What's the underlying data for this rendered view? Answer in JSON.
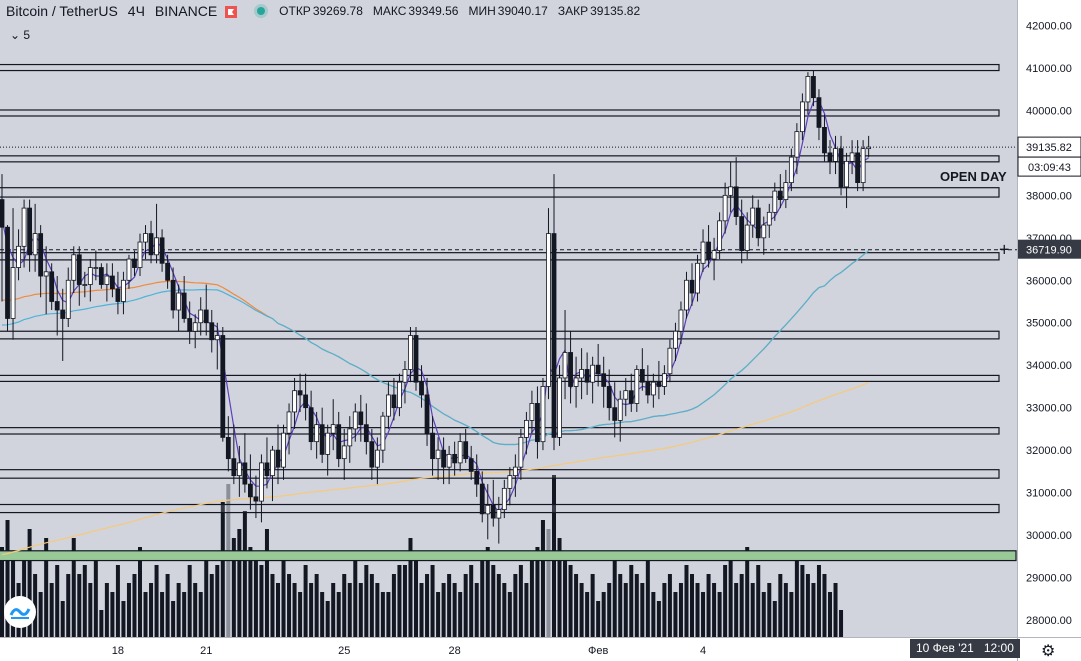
{
  "header": {
    "symbol": "Bitcoin / TetherUS",
    "interval": "4Ч",
    "exchange": "BINANCE",
    "ohlc": [
      {
        "label": "ОТКР",
        "value": "39269.78"
      },
      {
        "label": "МАКС",
        "value": "39349.56"
      },
      {
        "label": "МИН",
        "value": "39040.17"
      },
      {
        "label": "ЗАКР",
        "value": "39135.82"
      }
    ],
    "indicator_toggle": "5"
  },
  "colors": {
    "background": "#d1d4dc",
    "axis_bg": "#ffffff",
    "bull_fill": "#ffffff",
    "bear_fill": "#131722",
    "ma_purple": "#5b3fbf",
    "ma_cyan": "#4fb3d9",
    "ma_orange": "#f08a3c",
    "ma_yellow": "#f7c97a",
    "volume": "#131722",
    "volume_gray": "#8a8f99",
    "green_zone": "#98c996"
  },
  "chart_data": {
    "type": "candlestick",
    "y_axis": {
      "range": [
        27600,
        42600
      ],
      "ticks": [
        42000,
        41000,
        40000,
        39000,
        38000,
        37000,
        36000,
        35000,
        34000,
        33000,
        32000,
        31000,
        30000,
        29000,
        28000
      ],
      "tick_labels": [
        "42000.00",
        "41000.00",
        "40000.00",
        "39000.00",
        "38000.00",
        "37000.00",
        "36000.00",
        "35000.00",
        "34000.00",
        "33000.00",
        "32000.00",
        "31000.00",
        "30000.00",
        "29000.00",
        "28000.00"
      ]
    },
    "x_axis": {
      "tick_labels": [
        {
          "label": "18",
          "bar": 21
        },
        {
          "label": "21",
          "bar": 37
        },
        {
          "label": "25",
          "bar": 62
        },
        {
          "label": "28",
          "bar": 82
        },
        {
          "label": "Фев",
          "bar": 108
        },
        {
          "label": "4",
          "bar": 127
        }
      ],
      "crosshair_label": "10 Фев '21",
      "crosshair_time": "12:00"
    },
    "price_labels": [
      {
        "value": 39135.82,
        "text": "39135.82",
        "style": "current"
      },
      {
        "text": "03:09:43",
        "style": "countdown"
      },
      {
        "value": 36719.9,
        "text": "36719.90",
        "style": "crosshair"
      }
    ],
    "annotations": [
      {
        "text": "OPEN DAY",
        "value": 38450
      }
    ],
    "levels": [
      {
        "low": 40980,
        "high": 41080
      },
      {
        "low": 39920,
        "high": 40010
      },
      {
        "low": 38800,
        "high": 38930
      },
      {
        "low": 37960,
        "high": 38180
      },
      {
        "low": 36480,
        "high": 36650
      },
      {
        "low": 34620,
        "high": 34800
      },
      {
        "low": 33620,
        "high": 33760
      },
      {
        "low": 32380,
        "high": 32530
      },
      {
        "low": 31340,
        "high": 31540
      },
      {
        "low": 30530,
        "high": 30720
      },
      {
        "low": 29400,
        "high": 29630,
        "style": "green"
      }
    ],
    "reference_lines": [
      {
        "value": 39135.82,
        "style": "dotted"
      },
      {
        "value": 36719.9,
        "style": "dashed"
      }
    ],
    "candles": [
      [
        37900,
        38500,
        35500,
        37250
      ],
      [
        37250,
        37300,
        34800,
        35100
      ],
      [
        35100,
        37700,
        34600,
        36300
      ],
      [
        36300,
        37200,
        36000,
        36800
      ],
      [
        36800,
        37900,
        36300,
        37700
      ],
      [
        37700,
        37900,
        36200,
        36600
      ],
      [
        36600,
        37800,
        36200,
        37100
      ],
      [
        37100,
        37300,
        35600,
        36100
      ],
      [
        36100,
        36800,
        35200,
        36200
      ],
      [
        36200,
        36400,
        35300,
        35500
      ],
      [
        35500,
        36100,
        34700,
        35300
      ],
      [
        35300,
        35800,
        34100,
        35100
      ],
      [
        35100,
        36300,
        34900,
        36000
      ],
      [
        36000,
        36800,
        35700,
        36600
      ],
      [
        36600,
        36800,
        35400,
        35900
      ],
      [
        35900,
        36200,
        35600,
        35900
      ],
      [
        35900,
        36500,
        35500,
        36300
      ],
      [
        36300,
        36700,
        36000,
        36300
      ],
      [
        36300,
        36400,
        35800,
        35900
      ],
      [
        35900,
        36400,
        35500,
        36100
      ],
      [
        36100,
        36400,
        35600,
        35800
      ],
      [
        35800,
        36200,
        35200,
        35500
      ],
      [
        35500,
        36200,
        35200,
        36000
      ],
      [
        36000,
        36600,
        35800,
        36500
      ],
      [
        36500,
        36700,
        36100,
        36300
      ],
      [
        36300,
        37100,
        36100,
        36900
      ],
      [
        36900,
        37300,
        36500,
        37100
      ],
      [
        37100,
        37400,
        36400,
        36600
      ],
      [
        36600,
        37800,
        36400,
        37000
      ],
      [
        37000,
        37200,
        36200,
        36400
      ],
      [
        36400,
        36600,
        35800,
        36000
      ],
      [
        36000,
        36300,
        35100,
        35300
      ],
      [
        35300,
        35900,
        34800,
        35700
      ],
      [
        35700,
        36100,
        35000,
        35100
      ],
      [
        35100,
        35500,
        34500,
        34800
      ],
      [
        34800,
        35200,
        34400,
        35000
      ],
      [
        35000,
        35600,
        34700,
        35300
      ],
      [
        35300,
        35900,
        34700,
        35000
      ],
      [
        35000,
        35300,
        34300,
        34600
      ],
      [
        34600,
        35000,
        33900,
        34700
      ],
      [
        34700,
        34900,
        32200,
        32300
      ],
      [
        32300,
        32800,
        31500,
        31800
      ],
      [
        31800,
        32600,
        31200,
        31400
      ],
      [
        31400,
        32100,
        30900,
        31700
      ],
      [
        31700,
        32400,
        31000,
        31200
      ],
      [
        31200,
        31900,
        30600,
        30900
      ],
      [
        30900,
        31400,
        30400,
        30800
      ],
      [
        30800,
        31900,
        30300,
        31700
      ],
      [
        31700,
        32300,
        31100,
        31400
      ],
      [
        31400,
        32100,
        30800,
        32000
      ],
      [
        32000,
        32600,
        31200,
        31600
      ],
      [
        31600,
        32600,
        31300,
        32400
      ],
      [
        32400,
        33100,
        31900,
        32900
      ],
      [
        32900,
        33700,
        32500,
        33400
      ],
      [
        33400,
        33800,
        32900,
        33300
      ],
      [
        33300,
        33800,
        32700,
        33000
      ],
      [
        33000,
        33400,
        32000,
        32200
      ],
      [
        32200,
        32900,
        31800,
        32600
      ],
      [
        32600,
        33000,
        31700,
        31900
      ],
      [
        31900,
        32600,
        31400,
        32400
      ],
      [
        32400,
        33200,
        32000,
        32600
      ],
      [
        32600,
        32900,
        31600,
        31800
      ],
      [
        31800,
        32500,
        31300,
        32100
      ],
      [
        32100,
        32800,
        31700,
        32500
      ],
      [
        32500,
        33100,
        32200,
        32900
      ],
      [
        32900,
        33300,
        32200,
        32600
      ],
      [
        32600,
        33100,
        31900,
        32200
      ],
      [
        32200,
        32500,
        31300,
        31600
      ],
      [
        31600,
        32300,
        31200,
        32000
      ],
      [
        32000,
        32900,
        31700,
        32800
      ],
      [
        32800,
        33600,
        32500,
        33300
      ],
      [
        33300,
        33700,
        32700,
        33000
      ],
      [
        33000,
        33800,
        32800,
        33600
      ],
      [
        33600,
        34100,
        33100,
        33900
      ],
      [
        33900,
        34900,
        33600,
        34700
      ],
      [
        34700,
        34900,
        33400,
        33600
      ],
      [
        33600,
        34000,
        33000,
        33300
      ],
      [
        33300,
        33700,
        32100,
        32400
      ],
      [
        32400,
        32800,
        31400,
        31800
      ],
      [
        31800,
        32300,
        31300,
        32000
      ],
      [
        32000,
        32300,
        31200,
        31600
      ],
      [
        31600,
        32100,
        31200,
        31900
      ],
      [
        31900,
        32200,
        31400,
        31700
      ],
      [
        31700,
        32400,
        31500,
        32200
      ],
      [
        32200,
        32500,
        31700,
        31800
      ],
      [
        31800,
        32100,
        31300,
        31500
      ],
      [
        31500,
        31900,
        30900,
        31200
      ],
      [
        31200,
        31500,
        30300,
        30500
      ],
      [
        30500,
        31200,
        29900,
        30700
      ],
      [
        30700,
        31300,
        30200,
        30400
      ],
      [
        30400,
        30900,
        29800,
        30600
      ],
      [
        30600,
        31300,
        30400,
        31100
      ],
      [
        31100,
        31600,
        30700,
        31400
      ],
      [
        31400,
        31900,
        30900,
        31600
      ],
      [
        31600,
        32500,
        31300,
        32300
      ],
      [
        32300,
        32900,
        31900,
        32700
      ],
      [
        32700,
        33400,
        32400,
        33100
      ],
      [
        33100,
        33500,
        31800,
        32200
      ],
      [
        32200,
        33700,
        32000,
        33500
      ],
      [
        33500,
        37700,
        33200,
        37100
      ],
      [
        37100,
        38500,
        32000,
        32300
      ],
      [
        32300,
        34000,
        32100,
        33700
      ],
      [
        33700,
        35300,
        33200,
        34300
      ],
      [
        34300,
        34800,
        33100,
        33500
      ],
      [
        33500,
        34200,
        33000,
        33700
      ],
      [
        33700,
        34400,
        33200,
        33900
      ],
      [
        33900,
        34300,
        33300,
        33600
      ],
      [
        33600,
        34200,
        33100,
        34000
      ],
      [
        34000,
        34500,
        33500,
        33800
      ],
      [
        33800,
        34200,
        33000,
        33500
      ],
      [
        33500,
        33900,
        32700,
        33000
      ],
      [
        33000,
        33600,
        32300,
        32700
      ],
      [
        32700,
        33400,
        32200,
        33200
      ],
      [
        33200,
        33700,
        32800,
        33400
      ],
      [
        33400,
        33800,
        32900,
        33100
      ],
      [
        33100,
        34000,
        32900,
        33900
      ],
      [
        33900,
        34400,
        33400,
        33600
      ],
      [
        33600,
        34000,
        33100,
        33300
      ],
      [
        33300,
        33800,
        33000,
        33600
      ],
      [
        33600,
        34100,
        33200,
        33500
      ],
      [
        33500,
        34000,
        33300,
        33800
      ],
      [
        33800,
        34600,
        33600,
        34400
      ],
      [
        34400,
        35000,
        34100,
        34800
      ],
      [
        34800,
        35500,
        34500,
        35300
      ],
      [
        35300,
        36200,
        35100,
        36000
      ],
      [
        36000,
        36400,
        35400,
        35700
      ],
      [
        35700,
        36600,
        35500,
        36400
      ],
      [
        36400,
        37200,
        36200,
        36900
      ],
      [
        36900,
        37300,
        36300,
        36500
      ],
      [
        36500,
        37000,
        36000,
        36700
      ],
      [
        36700,
        37600,
        36500,
        37400
      ],
      [
        37400,
        38300,
        37100,
        38000
      ],
      [
        38000,
        38800,
        37600,
        38200
      ],
      [
        38200,
        38900,
        37300,
        37500
      ],
      [
        37500,
        37900,
        36400,
        36700
      ],
      [
        36700,
        37600,
        36500,
        37300
      ],
      [
        37300,
        38000,
        37000,
        37700
      ],
      [
        37700,
        37900,
        36800,
        37000
      ],
      [
        37000,
        37500,
        36600,
        37300
      ],
      [
        37300,
        37800,
        37000,
        37600
      ],
      [
        37600,
        38300,
        37400,
        38100
      ],
      [
        38100,
        38500,
        37700,
        37900
      ],
      [
        37900,
        38600,
        37700,
        38300
      ],
      [
        38300,
        39100,
        38100,
        38900
      ],
      [
        38900,
        39700,
        38500,
        39500
      ],
      [
        39500,
        40400,
        39300,
        40200
      ],
      [
        40200,
        40900,
        39900,
        40800
      ],
      [
        40800,
        40950,
        40100,
        40300
      ],
      [
        40300,
        40500,
        39300,
        39600
      ],
      [
        39600,
        39900,
        38800,
        39000
      ],
      [
        39000,
        39300,
        38500,
        38800
      ],
      [
        38800,
        39400,
        38500,
        39100
      ],
      [
        39100,
        39400,
        38000,
        38200
      ],
      [
        38200,
        39000,
        37700,
        38800
      ],
      [
        38800,
        39300,
        38500,
        39000
      ],
      [
        39000,
        39300,
        38100,
        38300
      ],
      [
        38300,
        39300,
        38100,
        39100
      ],
      [
        39100,
        39400,
        38900,
        39136
      ]
    ],
    "volumes": [
      10,
      13,
      9,
      6,
      9,
      12,
      7,
      5,
      11,
      6,
      8,
      4,
      7,
      11,
      7,
      8,
      6,
      9,
      3,
      6,
      5,
      8,
      4,
      6,
      7,
      10,
      5,
      6,
      8,
      5,
      7,
      4,
      6,
      5,
      8,
      6,
      5,
      9,
      7,
      8,
      15,
      17,
      11,
      12,
      14,
      10,
      9,
      8,
      12,
      7,
      6,
      9,
      7,
      6,
      5,
      8,
      6,
      7,
      5,
      4,
      6,
      5,
      7,
      6,
      9,
      6,
      8,
      7,
      6,
      5,
      5,
      7,
      8,
      8,
      11,
      9,
      6,
      7,
      8,
      5,
      6,
      7,
      6,
      5,
      7,
      8,
      6,
      9,
      10,
      8,
      7,
      6,
      5,
      7,
      8,
      6,
      9,
      10,
      13,
      12,
      18,
      11,
      9,
      8,
      7,
      6,
      5,
      7,
      4,
      5,
      6,
      9,
      7,
      6,
      8,
      7,
      6,
      9,
      5,
      4,
      6,
      7,
      5,
      6,
      8,
      7,
      6,
      5,
      7,
      6,
      5,
      8,
      9,
      6,
      7,
      10,
      6,
      8,
      5,
      6,
      4,
      7,
      6,
      5,
      9,
      8,
      7,
      6,
      8,
      7,
      5,
      6,
      3
    ]
  }
}
